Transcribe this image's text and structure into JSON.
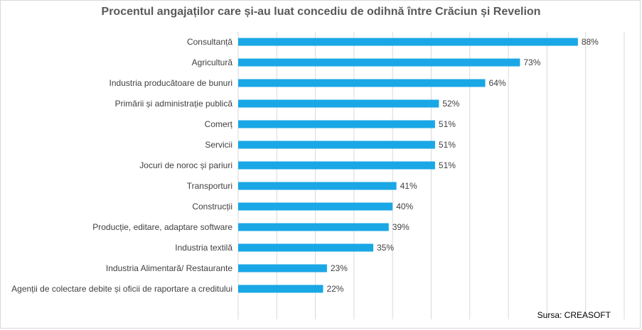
{
  "chart_data": {
    "type": "bar",
    "orientation": "horizontal",
    "title": "Procentul angajaților care și-au luat concediu de odihnă între Crăciun și Revelion",
    "categories": [
      "Consultanță",
      "Agricultură",
      "Industria producătoare de bunuri",
      "Primării și administrație publică",
      "Comerț",
      "Servicii",
      "Jocuri de noroc și pariuri",
      "Transporturi",
      "Construcții",
      "Producție, editare, adaptare software",
      "Industria textilă",
      "Industria Alimentară/ Restaurante",
      "Agenții de colectare debite și oficii de raportare a creditului"
    ],
    "values": [
      88,
      73,
      64,
      52,
      51,
      51,
      51,
      41,
      40,
      39,
      35,
      23,
      22
    ],
    "value_labels": [
      "88%",
      "73%",
      "64%",
      "52%",
      "51%",
      "51%",
      "51%",
      "41%",
      "40%",
      "39%",
      "35%",
      "23%",
      "22%"
    ],
    "xlim": [
      0,
      100
    ],
    "grid": true,
    "bar_color": "#1aa7e6",
    "grid_color": "#d9d9d9",
    "source": "Sursa: CREASOFT"
  }
}
